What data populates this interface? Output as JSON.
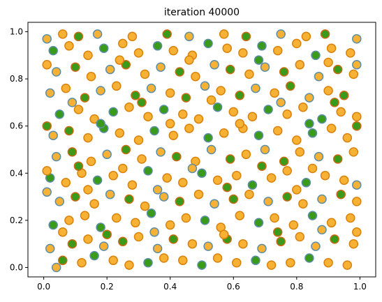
{
  "chart_data": {
    "type": "scatter",
    "title": "iteration 40000",
    "xlabel": "",
    "ylabel": "",
    "xlim": [
      -0.05,
      1.05
    ],
    "ylim": [
      -0.04,
      1.04
    ],
    "x_ticks": [
      0.0,
      0.2,
      0.4,
      0.6,
      0.8,
      1.0
    ],
    "x_tick_labels": [
      "0.0",
      "0.2",
      "0.4",
      "0.6",
      "0.8",
      "1.0"
    ],
    "y_ticks": [
      0.0,
      0.2,
      0.4,
      0.6,
      0.8,
      1.0
    ],
    "y_tick_labels": [
      "0.0",
      "0.2",
      "0.4",
      "0.6",
      "0.8",
      "1.0"
    ],
    "grid": false,
    "legend": "none",
    "marker": {
      "orange_fill": "#f7b236",
      "orange_edge": "#d9820b",
      "green_fill": "#3a9a1a",
      "green_edge": "#c96a12",
      "outer_edge": "#5b8ea6"
    },
    "series": [
      {
        "points": [
          [
            0.04,
            0.0,
            "o"
          ],
          [
            0.06,
            0.03,
            "g"
          ],
          [
            0.12,
            0.02,
            "o"
          ],
          [
            0.16,
            0.05,
            "g"
          ],
          [
            0.22,
            0.03,
            "o"
          ],
          [
            0.27,
            0.01,
            "o"
          ],
          [
            0.33,
            0.02,
            "g"
          ],
          [
            0.38,
            0.04,
            "o"
          ],
          [
            0.44,
            0.03,
            "o"
          ],
          [
            0.5,
            0.01,
            "g"
          ],
          [
            0.55,
            0.04,
            "o"
          ],
          [
            0.61,
            0.02,
            "o"
          ],
          [
            0.67,
            0.03,
            "g"
          ],
          [
            0.72,
            0.01,
            "o"
          ],
          [
            0.78,
            0.02,
            "o"
          ],
          [
            0.84,
            0.04,
            "g"
          ],
          [
            0.9,
            0.02,
            "o"
          ],
          [
            0.96,
            0.01,
            "o"
          ],
          [
            0.02,
            0.08,
            "o"
          ],
          [
            0.09,
            0.1,
            "g"
          ],
          [
            0.14,
            0.12,
            "o"
          ],
          [
            0.19,
            0.09,
            "o"
          ],
          [
            0.25,
            0.11,
            "g"
          ],
          [
            0.3,
            0.13,
            "o"
          ],
          [
            0.36,
            0.08,
            "o"
          ],
          [
            0.41,
            0.12,
            "g"
          ],
          [
            0.47,
            0.1,
            "o"
          ],
          [
            0.52,
            0.09,
            "o"
          ],
          [
            0.58,
            0.12,
            "g"
          ],
          [
            0.63,
            0.1,
            "o"
          ],
          [
            0.69,
            0.08,
            "o"
          ],
          [
            0.75,
            0.11,
            "g"
          ],
          [
            0.81,
            0.13,
            "o"
          ],
          [
            0.86,
            0.09,
            "o"
          ],
          [
            0.92,
            0.12,
            "g"
          ],
          [
            0.98,
            0.1,
            "o"
          ],
          [
            0.03,
            0.18,
            "g"
          ],
          [
            0.08,
            0.2,
            "o"
          ],
          [
            0.13,
            0.22,
            "o"
          ],
          [
            0.18,
            0.17,
            "g"
          ],
          [
            0.23,
            0.21,
            "o"
          ],
          [
            0.29,
            0.19,
            "o"
          ],
          [
            0.34,
            0.23,
            "g"
          ],
          [
            0.4,
            0.18,
            "o"
          ],
          [
            0.45,
            0.21,
            "o"
          ],
          [
            0.51,
            0.2,
            "g"
          ],
          [
            0.56,
            0.17,
            "o"
          ],
          [
            0.62,
            0.22,
            "o"
          ],
          [
            0.68,
            0.19,
            "g"
          ],
          [
            0.73,
            0.21,
            "o"
          ],
          [
            0.79,
            0.18,
            "o"
          ],
          [
            0.85,
            0.22,
            "g"
          ],
          [
            0.91,
            0.19,
            "o"
          ],
          [
            0.97,
            0.21,
            "o"
          ],
          [
            0.05,
            0.28,
            "o"
          ],
          [
            0.1,
            0.3,
            "g"
          ],
          [
            0.16,
            0.27,
            "o"
          ],
          [
            0.21,
            0.31,
            "o"
          ],
          [
            0.27,
            0.29,
            "g"
          ],
          [
            0.32,
            0.26,
            "o"
          ],
          [
            0.38,
            0.3,
            "o"
          ],
          [
            0.43,
            0.28,
            "g"
          ],
          [
            0.49,
            0.31,
            "o"
          ],
          [
            0.54,
            0.27,
            "o"
          ],
          [
            0.6,
            0.29,
            "g"
          ],
          [
            0.65,
            0.31,
            "o"
          ],
          [
            0.71,
            0.28,
            "o"
          ],
          [
            0.77,
            0.3,
            "g"
          ],
          [
            0.82,
            0.27,
            "o"
          ],
          [
            0.88,
            0.29,
            "o"
          ],
          [
            0.94,
            0.31,
            "g"
          ],
          [
            0.99,
            0.28,
            "o"
          ],
          [
            0.02,
            0.38,
            "g"
          ],
          [
            0.07,
            0.36,
            "o"
          ],
          [
            0.12,
            0.4,
            "o"
          ],
          [
            0.17,
            0.37,
            "g"
          ],
          [
            0.22,
            0.39,
            "o"
          ],
          [
            0.28,
            0.35,
            "o"
          ],
          [
            0.33,
            0.41,
            "g"
          ],
          [
            0.39,
            0.38,
            "o"
          ],
          [
            0.44,
            0.36,
            "o"
          ],
          [
            0.5,
            0.4,
            "g"
          ],
          [
            0.55,
            0.37,
            "o"
          ],
          [
            0.61,
            0.39,
            "o"
          ],
          [
            0.66,
            0.35,
            "g"
          ],
          [
            0.72,
            0.38,
            "o"
          ],
          [
            0.77,
            0.41,
            "o"
          ],
          [
            0.83,
            0.36,
            "g"
          ],
          [
            0.89,
            0.39,
            "o"
          ],
          [
            0.95,
            0.37,
            "o"
          ],
          [
            0.04,
            0.47,
            "o"
          ],
          [
            0.09,
            0.49,
            "g"
          ],
          [
            0.15,
            0.45,
            "o"
          ],
          [
            0.2,
            0.48,
            "o"
          ],
          [
            0.26,
            0.5,
            "g"
          ],
          [
            0.31,
            0.46,
            "o"
          ],
          [
            0.37,
            0.49,
            "o"
          ],
          [
            0.42,
            0.47,
            "g"
          ],
          [
            0.48,
            0.45,
            "o"
          ],
          [
            0.53,
            0.5,
            "o"
          ],
          [
            0.59,
            0.46,
            "g"
          ],
          [
            0.64,
            0.48,
            "o"
          ],
          [
            0.7,
            0.5,
            "o"
          ],
          [
            0.76,
            0.45,
            "g"
          ],
          [
            0.81,
            0.49,
            "o"
          ],
          [
            0.87,
            0.47,
            "o"
          ],
          [
            0.93,
            0.46,
            "g"
          ],
          [
            0.98,
            0.49,
            "o"
          ],
          [
            0.03,
            0.56,
            "o"
          ],
          [
            0.08,
            0.58,
            "g"
          ],
          [
            0.14,
            0.55,
            "o"
          ],
          [
            0.19,
            0.59,
            "g"
          ],
          [
            0.24,
            0.57,
            "o"
          ],
          [
            0.3,
            0.54,
            "o"
          ],
          [
            0.35,
            0.58,
            "g"
          ],
          [
            0.41,
            0.56,
            "o"
          ],
          [
            0.46,
            0.59,
            "o"
          ],
          [
            0.52,
            0.55,
            "g"
          ],
          [
            0.57,
            0.57,
            "o"
          ],
          [
            0.63,
            0.59,
            "o"
          ],
          [
            0.68,
            0.56,
            "g"
          ],
          [
            0.74,
            0.58,
            "o"
          ],
          [
            0.8,
            0.54,
            "o"
          ],
          [
            0.85,
            0.57,
            "g"
          ],
          [
            0.91,
            0.59,
            "o"
          ],
          [
            0.96,
            0.55,
            "o"
          ],
          [
            0.05,
            0.65,
            "g"
          ],
          [
            0.11,
            0.67,
            "o"
          ],
          [
            0.16,
            0.63,
            "o"
          ],
          [
            0.22,
            0.66,
            "g"
          ],
          [
            0.27,
            0.68,
            "o"
          ],
          [
            0.33,
            0.64,
            "o"
          ],
          [
            0.38,
            0.67,
            "g"
          ],
          [
            0.44,
            0.65,
            "o"
          ],
          [
            0.49,
            0.63,
            "o"
          ],
          [
            0.55,
            0.68,
            "g"
          ],
          [
            0.6,
            0.66,
            "o"
          ],
          [
            0.66,
            0.64,
            "o"
          ],
          [
            0.71,
            0.67,
            "g"
          ],
          [
            0.77,
            0.65,
            "o"
          ],
          [
            0.82,
            0.68,
            "o"
          ],
          [
            0.88,
            0.63,
            "g"
          ],
          [
            0.94,
            0.66,
            "o"
          ],
          [
            0.99,
            0.64,
            "o"
          ],
          [
            0.02,
            0.74,
            "o"
          ],
          [
            0.07,
            0.76,
            "o"
          ],
          [
            0.13,
            0.72,
            "g"
          ],
          [
            0.18,
            0.75,
            "o"
          ],
          [
            0.23,
            0.77,
            "o"
          ],
          [
            0.29,
            0.73,
            "g"
          ],
          [
            0.34,
            0.76,
            "o"
          ],
          [
            0.4,
            0.74,
            "o"
          ],
          [
            0.45,
            0.72,
            "g"
          ],
          [
            0.51,
            0.77,
            "o"
          ],
          [
            0.56,
            0.75,
            "o"
          ],
          [
            0.62,
            0.73,
            "g"
          ],
          [
            0.67,
            0.76,
            "o"
          ],
          [
            0.73,
            0.74,
            "o"
          ],
          [
            0.78,
            0.77,
            "g"
          ],
          [
            0.84,
            0.72,
            "o"
          ],
          [
            0.9,
            0.75,
            "o"
          ],
          [
            0.95,
            0.73,
            "g"
          ],
          [
            0.04,
            0.83,
            "o"
          ],
          [
            0.1,
            0.85,
            "g"
          ],
          [
            0.15,
            0.81,
            "o"
          ],
          [
            0.21,
            0.84,
            "o"
          ],
          [
            0.26,
            0.86,
            "g"
          ],
          [
            0.32,
            0.82,
            "o"
          ],
          [
            0.37,
            0.85,
            "o"
          ],
          [
            0.43,
            0.83,
            "g"
          ],
          [
            0.48,
            0.81,
            "o"
          ],
          [
            0.54,
            0.86,
            "o"
          ],
          [
            0.59,
            0.84,
            "g"
          ],
          [
            0.65,
            0.82,
            "o"
          ],
          [
            0.7,
            0.85,
            "o"
          ],
          [
            0.76,
            0.83,
            "g"
          ],
          [
            0.81,
            0.86,
            "o"
          ],
          [
            0.87,
            0.81,
            "o"
          ],
          [
            0.93,
            0.84,
            "g"
          ],
          [
            0.98,
            0.82,
            "o"
          ],
          [
            0.03,
            0.92,
            "g"
          ],
          [
            0.08,
            0.94,
            "o"
          ],
          [
            0.14,
            0.9,
            "o"
          ],
          [
            0.19,
            0.93,
            "g"
          ],
          [
            0.25,
            0.95,
            "o"
          ],
          [
            0.3,
            0.91,
            "o"
          ],
          [
            0.36,
            0.94,
            "g"
          ],
          [
            0.41,
            0.92,
            "o"
          ],
          [
            0.47,
            0.9,
            "o"
          ],
          [
            0.52,
            0.95,
            "g"
          ],
          [
            0.58,
            0.93,
            "o"
          ],
          [
            0.63,
            0.91,
            "o"
          ],
          [
            0.69,
            0.94,
            "g"
          ],
          [
            0.74,
            0.92,
            "o"
          ],
          [
            0.8,
            0.95,
            "o"
          ],
          [
            0.86,
            0.9,
            "g"
          ],
          [
            0.91,
            0.93,
            "o"
          ],
          [
            0.97,
            0.91,
            "o"
          ],
          [
            0.01,
            0.97,
            "o"
          ],
          [
            0.06,
            0.99,
            "o"
          ],
          [
            0.11,
            0.98,
            "g"
          ],
          [
            0.17,
            0.99,
            "o"
          ],
          [
            0.28,
            0.98,
            "o"
          ],
          [
            0.39,
            0.99,
            "g"
          ],
          [
            0.46,
            0.98,
            "o"
          ],
          [
            0.57,
            0.99,
            "o"
          ],
          [
            0.64,
            0.98,
            "g"
          ],
          [
            0.75,
            0.99,
            "o"
          ],
          [
            0.83,
            0.98,
            "o"
          ],
          [
            0.89,
            0.99,
            "g"
          ],
          [
            0.99,
            0.97,
            "o"
          ],
          [
            0.06,
            0.15,
            "o"
          ],
          [
            0.2,
            0.14,
            "g"
          ],
          [
            0.35,
            0.15,
            "o"
          ],
          [
            0.57,
            0.14,
            "o"
          ],
          [
            0.74,
            0.15,
            "g"
          ],
          [
            0.88,
            0.16,
            "o"
          ],
          [
            0.11,
            0.43,
            "g"
          ],
          [
            0.25,
            0.42,
            "o"
          ],
          [
            0.47,
            0.42,
            "o"
          ],
          [
            0.69,
            0.43,
            "g"
          ],
          [
            0.85,
            0.42,
            "o"
          ],
          [
            0.09,
            0.7,
            "o"
          ],
          [
            0.31,
            0.7,
            "g"
          ],
          [
            0.53,
            0.71,
            "o"
          ],
          [
            0.75,
            0.7,
            "o"
          ],
          [
            0.92,
            0.7,
            "g"
          ],
          [
            0.14,
            0.33,
            "o"
          ],
          [
            0.36,
            0.33,
            "o"
          ],
          [
            0.58,
            0.34,
            "g"
          ],
          [
            0.8,
            0.33,
            "o"
          ],
          [
            0.18,
            0.61,
            "g"
          ],
          [
            0.4,
            0.61,
            "o"
          ],
          [
            0.62,
            0.61,
            "o"
          ],
          [
            0.84,
            0.61,
            "g"
          ],
          [
            0.24,
            0.88,
            "o"
          ],
          [
            0.46,
            0.88,
            "o"
          ],
          [
            0.68,
            0.88,
            "g"
          ],
          [
            0.9,
            0.87,
            "o"
          ],
          [
            0.01,
            0.41,
            "o"
          ],
          [
            0.01,
            0.32,
            "o"
          ],
          [
            0.01,
            0.6,
            "g"
          ],
          [
            0.01,
            0.86,
            "o"
          ],
          [
            0.99,
            0.35,
            "o"
          ],
          [
            0.99,
            0.6,
            "g"
          ],
          [
            0.99,
            0.15,
            "o"
          ],
          [
            0.99,
            0.86,
            "o"
          ]
        ]
      }
    ]
  }
}
